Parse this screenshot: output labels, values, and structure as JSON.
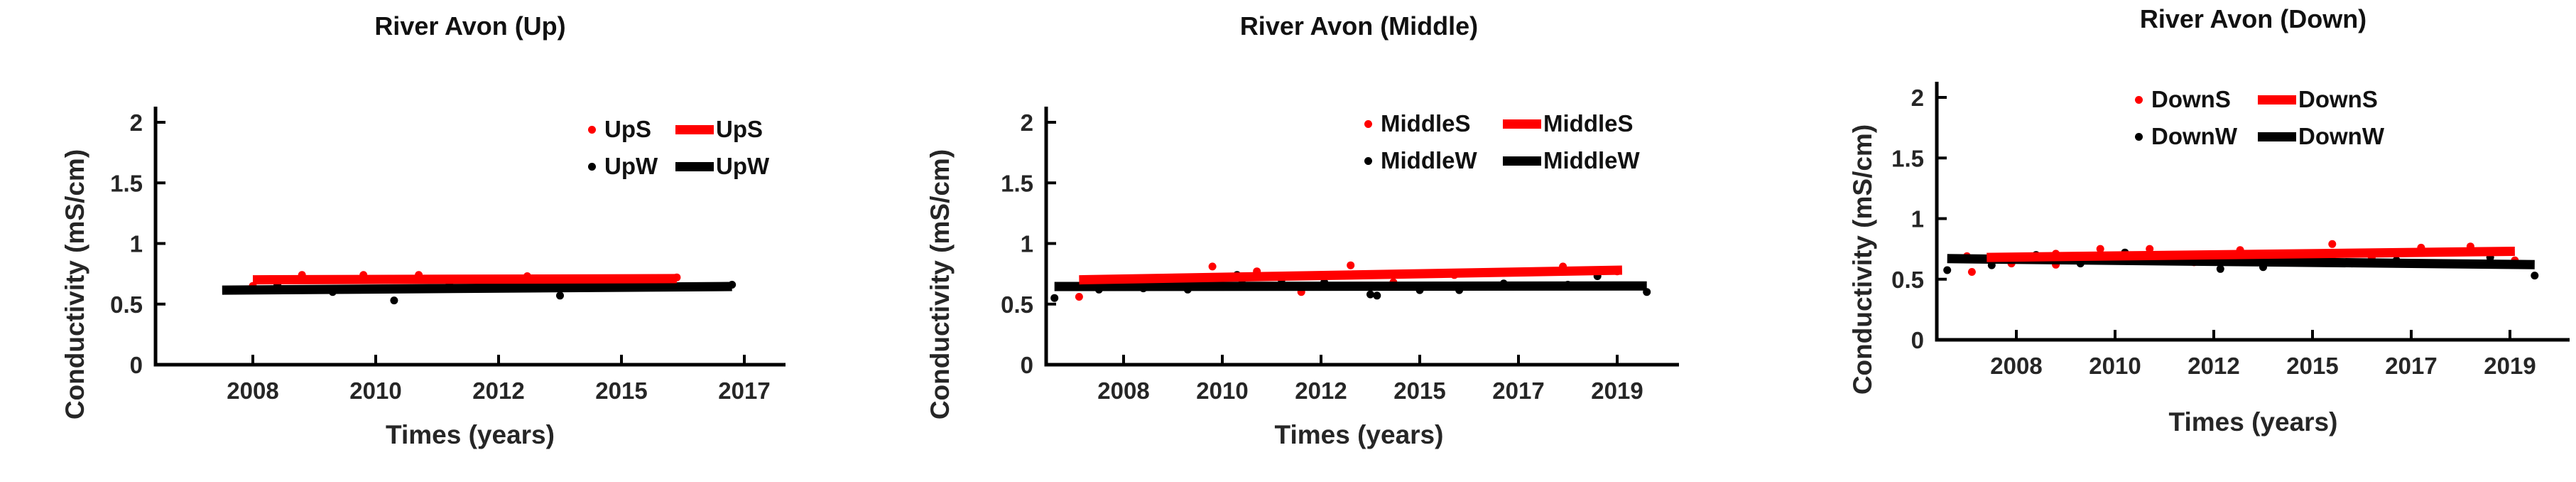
{
  "page": {
    "background": "#ffffff",
    "series_color_s": "#ff0000",
    "series_color_w": "#000000"
  },
  "chart_data": [
    {
      "type": "scatter",
      "title": "River Avon (Up)",
      "xlabel": "Times (years)",
      "ylabel": "Conductivity (mS/cm)",
      "ylim": [
        0,
        2
      ],
      "grid": false,
      "legend_position": "top-right",
      "y_tick_values": [
        0,
        0.5,
        1,
        1.5,
        2
      ],
      "y_tick_labels": [
        "0",
        "0.5",
        "1",
        "1.5",
        "2"
      ],
      "x_tick_labels": [
        "2008",
        "2010",
        "2012",
        "2015",
        "2017"
      ],
      "series": [
        {
          "name": "UpS",
          "kind": "scatter",
          "color": "#ff0000",
          "points": [
            [
              2008.0,
              0.65
            ],
            [
              2008.8,
              0.74
            ],
            [
              2009.8,
              0.74
            ],
            [
              2010.7,
              0.74
            ],
            [
              2011.7,
              0.65
            ],
            [
              2012.7,
              0.73
            ],
            [
              2014.3,
              0.66
            ],
            [
              2015.9,
              0.72
            ]
          ]
        },
        {
          "name": "UpS",
          "kind": "trendline",
          "color": "#ff0000",
          "points": [
            [
              2008.0,
              0.7
            ],
            [
              2015.9,
              0.71
            ]
          ]
        },
        {
          "name": "UpW",
          "kind": "scatter",
          "color": "#000000",
          "points": [
            [
              2008.4,
              0.66
            ],
            [
              2009.3,
              0.6
            ],
            [
              2010.3,
              0.53
            ],
            [
              2011.2,
              0.66
            ],
            [
              2012.1,
              0.65
            ],
            [
              2013.5,
              0.57
            ],
            [
              2016.8,
              0.66
            ]
          ]
        },
        {
          "name": "UpW",
          "kind": "trendline",
          "color": "#000000",
          "points": [
            [
              2007.5,
              0.615
            ],
            [
              2016.8,
              0.645
            ]
          ]
        }
      ]
    },
    {
      "type": "scatter",
      "title": "River Avon (Middle)",
      "xlabel": "Times (years)",
      "ylabel": "Conductivity (mS/cm)",
      "ylim": [
        0,
        2
      ],
      "grid": false,
      "legend_position": "top-right",
      "y_tick_values": [
        0,
        0.5,
        1,
        1.5,
        2
      ],
      "y_tick_labels": [
        "0",
        "0.5",
        "1",
        "1.5",
        "2"
      ],
      "x_tick_labels": [
        "2008",
        "2010",
        "2012",
        "2015",
        "2017",
        "2019"
      ],
      "series": [
        {
          "name": "MiddleS",
          "kind": "scatter",
          "color": "#ff0000",
          "points": [
            [
              2007.1,
              0.56
            ],
            [
              2008.0,
              0.67
            ],
            [
              2009.8,
              0.81
            ],
            [
              2010.7,
              0.77
            ],
            [
              2011.6,
              0.6
            ],
            [
              2012.9,
              0.82
            ],
            [
              2014.2,
              0.68
            ],
            [
              2015.7,
              0.74
            ],
            [
              2017.9,
              0.81
            ],
            [
              2019.0,
              0.77
            ]
          ]
        },
        {
          "name": "MiddleS",
          "kind": "trendline",
          "color": "#ff0000",
          "points": [
            [
              2007.1,
              0.7
            ],
            [
              2019.1,
              0.78
            ]
          ]
        },
        {
          "name": "MiddleW",
          "kind": "scatter",
          "color": "#000000",
          "points": [
            [
              2006.6,
              0.55
            ],
            [
              2007.5,
              0.68
            ],
            [
              2007.5,
              0.62
            ],
            [
              2008.4,
              0.63
            ],
            [
              2009.3,
              0.62
            ],
            [
              2010.3,
              0.74
            ],
            [
              2010.4,
              0.67
            ],
            [
              2011.2,
              0.7
            ],
            [
              2012.1,
              0.68
            ],
            [
              2013.5,
              0.58
            ],
            [
              2013.7,
              0.57
            ],
            [
              2014.8,
              0.65
            ],
            [
              2015.0,
              0.615
            ],
            [
              2015.8,
              0.615
            ],
            [
              2016.7,
              0.67
            ],
            [
              2018.0,
              0.66
            ],
            [
              2018.6,
              0.73
            ],
            [
              2019.6,
              0.6
            ]
          ]
        },
        {
          "name": "MiddleW",
          "kind": "trendline",
          "color": "#000000",
          "points": [
            [
              2006.6,
              0.645
            ],
            [
              2019.6,
              0.65
            ]
          ]
        }
      ]
    },
    {
      "type": "scatter",
      "title": "River Avon (Down)",
      "xlabel": "Times (years)",
      "ylabel": "Conductivity (mS/cm)",
      "ylim": [
        0,
        2
      ],
      "grid": false,
      "legend_position": "top-right",
      "y_tick_values": [
        0,
        0.5,
        1,
        1.5,
        2
      ],
      "y_tick_labels": [
        "0",
        "0.5",
        "1",
        "1.5",
        "2"
      ],
      "x_tick_labels": [
        "2008",
        "2010",
        "2012",
        "2015",
        "2017",
        "2019"
      ],
      "series": [
        {
          "name": "DownS",
          "kind": "scatter",
          "color": "#ff0000",
          "points": [
            [
              2007.0,
              0.69
            ],
            [
              2007.1,
              0.56
            ],
            [
              2007.9,
              0.63
            ],
            [
              2008.8,
              0.71
            ],
            [
              2008.8,
              0.62
            ],
            [
              2009.7,
              0.75
            ],
            [
              2010.7,
              0.75
            ],
            [
              2011.6,
              0.64
            ],
            [
              2012.8,
              0.74
            ],
            [
              2015.4,
              0.79
            ],
            [
              2015.4,
              0.66
            ],
            [
              2016.2,
              0.68
            ],
            [
              2017.2,
              0.76
            ],
            [
              2018.2,
              0.77
            ],
            [
              2019.1,
              0.655
            ]
          ]
        },
        {
          "name": "DownS",
          "kind": "trendline",
          "color": "#ff0000",
          "points": [
            [
              2007.4,
              0.68
            ],
            [
              2019.1,
              0.73
            ]
          ]
        },
        {
          "name": "DownW",
          "kind": "scatter",
          "color": "#000000",
          "points": [
            [
              2006.6,
              0.575
            ],
            [
              2007.5,
              0.615
            ],
            [
              2008.4,
              0.7
            ],
            [
              2009.3,
              0.63
            ],
            [
              2010.2,
              0.72
            ],
            [
              2012.2,
              0.585
            ],
            [
              2013.5,
              0.6
            ],
            [
              2015.8,
              0.63
            ],
            [
              2016.7,
              0.655
            ],
            [
              2018.6,
              0.68
            ],
            [
              2019.5,
              0.53
            ]
          ]
        },
        {
          "name": "DownW",
          "kind": "trendline",
          "color": "#000000",
          "points": [
            [
              2006.6,
              0.67
            ],
            [
              2019.5,
              0.62
            ]
          ]
        }
      ]
    }
  ]
}
